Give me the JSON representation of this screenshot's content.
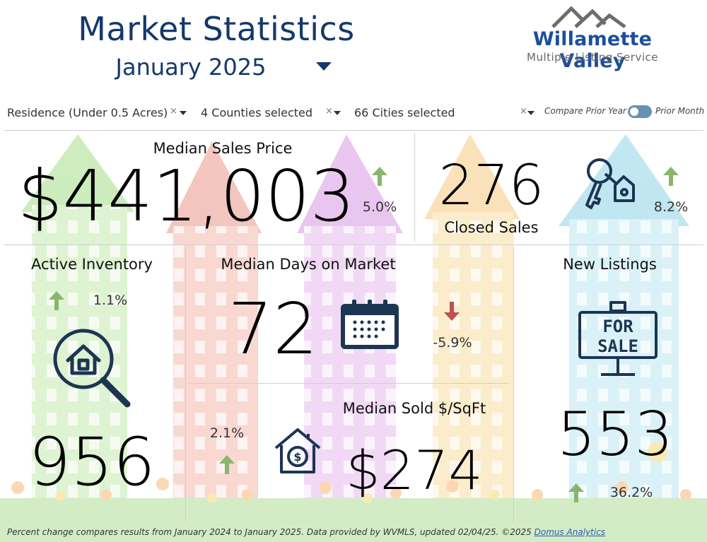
{
  "header": {
    "title": "Market Statistics",
    "period": "January 2025"
  },
  "logo": {
    "name": "Willamette Valley",
    "subtitle": "Multiple Listing Service"
  },
  "filters": {
    "property_type": "Residence (Under 0.5 Acres)",
    "counties": "4 Counties selected",
    "cities": "66 Cities selected",
    "compare_left": "Compare Prior Year",
    "compare_right": "Prior Month",
    "clear_symbol": "×"
  },
  "metrics": {
    "median_sales_price": {
      "label": "Median Sales Price",
      "value": "$441,003",
      "change": "5.0%",
      "direction": "up"
    },
    "closed_sales": {
      "label": "Closed Sales",
      "value": "276",
      "change": "8.2%",
      "direction": "up"
    },
    "active_inventory": {
      "label": "Active Inventory",
      "value": "956",
      "change": "1.1%",
      "direction": "up"
    },
    "median_days_on_market": {
      "label": "Median Days on Market",
      "value": "72",
      "change": "-5.9%",
      "direction": "down"
    },
    "new_listings": {
      "label": "New Listings",
      "value": "553",
      "change": "36.2%",
      "direction": "up"
    },
    "median_sold_sqft": {
      "label": "Median Sold $/SqFt",
      "value": "$274",
      "change": "2.1%",
      "direction": "up"
    }
  },
  "sign": {
    "line1": "FOR",
    "line2": "SALE"
  },
  "footer": {
    "text": "Percent change compares results from January 2024 to January 2025.  Data provided by WVMLS, updated 02/04/25. ©2025",
    "link": "Domus Analytics"
  },
  "colors": {
    "title_blue": "#14386b",
    "up_green": "#8ab56e",
    "down_red": "#c0504d",
    "icon_navy": "#1c3553"
  }
}
